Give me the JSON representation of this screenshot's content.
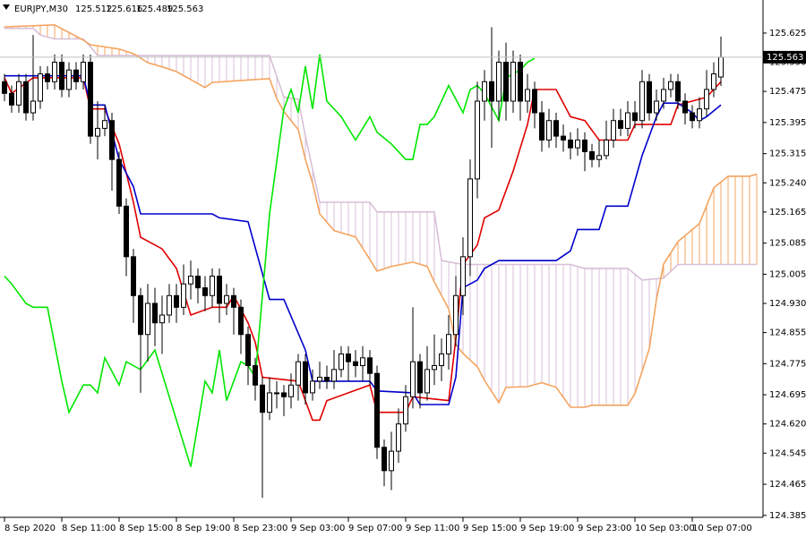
{
  "chart_data": {
    "type": "candlestick",
    "symbol": "EURJPY,M30",
    "xlim": [
      -0.625,
      105.875
    ],
    "ylim": [
      124.38,
      125.71
    ],
    "xticks": [
      {
        "value": 0,
        "label": "8 Sep 2020"
      },
      {
        "value": 8,
        "label": "8 Sep 11:00"
      },
      {
        "value": 16,
        "label": "8 Sep 15:00"
      },
      {
        "value": 24,
        "label": "8 Sep 19:00"
      },
      {
        "value": 32,
        "label": "8 Sep 23:00"
      },
      {
        "value": 40,
        "label": "9 Sep 03:00"
      },
      {
        "value": 48,
        "label": "9 Sep 07:00"
      },
      {
        "value": 56,
        "label": "9 Sep 11:00"
      },
      {
        "value": 64,
        "label": "9 Sep 15:00"
      },
      {
        "value": 72,
        "label": "9 Sep 19:00"
      },
      {
        "value": 80,
        "label": "9 Sep 23:00"
      },
      {
        "value": 88,
        "label": "10 Sep 03:00"
      },
      {
        "value": 96,
        "label": "10 Sep 07:00"
      }
    ],
    "yticks": [
      125.625,
      {
        "value": 125.55,
        "label": "125.550"
      },
      125.475,
      125.395,
      125.315,
      {
        "value": 125.24,
        "label": "125.240"
      },
      125.165,
      125.085,
      125.005,
      {
        "value": 124.93,
        "label": "124.930"
      },
      124.855,
      124.775,
      124.695,
      {
        "value": 124.62,
        "label": "124.620"
      },
      124.545,
      124.465,
      124.385
    ],
    "candles": {
      "open": [
        125.5,
        125.47,
        125.44,
        125.5,
        125.42,
        125.45,
        125.52,
        125.5,
        125.55,
        125.48,
        125.53,
        125.5,
        125.55,
        125.36,
        125.38,
        125.4,
        125.3,
        125.18,
        125.05,
        124.95,
        124.85,
        124.93,
        124.88,
        124.9,
        124.95,
        124.92,
        124.98,
        125.0,
        124.97,
        124.95,
        125.0,
        124.93,
        124.95,
        124.92,
        124.85,
        124.77,
        124.72,
        124.65,
        124.7,
        124.7,
        124.69,
        124.72,
        124.78,
        124.7,
        124.73,
        124.74,
        124.73,
        124.76,
        124.8,
        124.78,
        124.77,
        124.79,
        124.75,
        124.56,
        124.5,
        124.55,
        124.62,
        124.69,
        124.78,
        124.7,
        124.76,
        124.77,
        124.8,
        124.85,
        124.95,
        125.05,
        125.25,
        125.45,
        125.5,
        125.45,
        125.55,
        125.45,
        125.55,
        125.45,
        125.48,
        125.42,
        125.35,
        125.4,
        125.36,
        125.35,
        125.33,
        125.35,
        125.32,
        125.3,
        125.31,
        125.35,
        125.4,
        125.38,
        125.42,
        125.4,
        125.5,
        125.42,
        125.45,
        125.48,
        125.5,
        125.45,
        125.42,
        125.4,
        125.43,
        125.48,
        125.512
      ],
      "high": [
        125.52,
        125.49,
        125.52,
        125.52,
        125.62,
        125.54,
        125.54,
        125.57,
        125.57,
        125.55,
        125.55,
        125.57,
        125.57,
        125.45,
        125.44,
        125.42,
        125.32,
        125.2,
        125.07,
        124.97,
        124.98,
        124.97,
        124.95,
        124.98,
        124.98,
        125.03,
        125.04,
        125.02,
        125.0,
        125.02,
        125.02,
        124.98,
        124.97,
        124.94,
        124.87,
        124.79,
        124.74,
        124.74,
        124.73,
        124.72,
        124.75,
        124.8,
        124.8,
        124.76,
        124.78,
        124.77,
        124.81,
        124.82,
        124.82,
        124.81,
        124.82,
        124.81,
        124.77,
        124.58,
        124.6,
        124.66,
        124.72,
        124.92,
        124.8,
        124.82,
        124.85,
        124.84,
        124.9,
        125.0,
        125.1,
        125.3,
        125.5,
        125.53,
        125.64,
        125.58,
        125.6,
        125.58,
        125.57,
        125.52,
        125.5,
        125.45,
        125.43,
        125.42,
        125.39,
        125.37,
        125.38,
        125.37,
        125.34,
        125.35,
        125.4,
        125.43,
        125.43,
        125.45,
        125.45,
        125.53,
        125.52,
        125.48,
        125.51,
        125.52,
        125.52,
        125.47,
        125.44,
        125.46,
        125.53,
        125.55,
        125.616
      ],
      "low": [
        125.45,
        125.42,
        125.42,
        125.4,
        125.4,
        125.43,
        125.48,
        125.48,
        125.46,
        125.46,
        125.48,
        125.48,
        125.34,
        125.3,
        125.36,
        125.22,
        125.16,
        125.0,
        124.88,
        124.7,
        124.78,
        124.82,
        124.8,
        124.88,
        124.88,
        124.9,
        124.94,
        124.93,
        124.91,
        124.92,
        124.88,
        124.9,
        124.85,
        124.8,
        124.72,
        124.68,
        124.43,
        124.63,
        124.66,
        124.64,
        124.66,
        124.68,
        124.67,
        124.68,
        124.71,
        124.71,
        124.71,
        124.74,
        124.73,
        124.74,
        124.73,
        124.72,
        124.53,
        124.46,
        124.45,
        124.52,
        124.6,
        124.66,
        124.66,
        124.68,
        124.72,
        124.73,
        124.76,
        124.82,
        124.9,
        125.0,
        125.2,
        125.4,
        125.33,
        125.4,
        125.4,
        125.42,
        125.4,
        125.42,
        125.38,
        125.32,
        125.33,
        125.33,
        125.32,
        125.3,
        125.31,
        125.27,
        125.28,
        125.28,
        125.3,
        125.33,
        125.36,
        125.36,
        125.38,
        125.38,
        125.4,
        125.4,
        125.43,
        125.46,
        125.43,
        125.39,
        125.38,
        125.38,
        125.41,
        125.46,
        125.489
      ],
      "close": [
        125.47,
        125.44,
        125.5,
        125.42,
        125.45,
        125.52,
        125.5,
        125.55,
        125.48,
        125.53,
        125.5,
        125.55,
        125.36,
        125.38,
        125.4,
        125.3,
        125.18,
        125.05,
        124.95,
        124.85,
        124.93,
        124.88,
        124.9,
        124.95,
        124.92,
        124.98,
        125.0,
        124.97,
        124.95,
        125.0,
        124.93,
        124.95,
        124.92,
        124.85,
        124.77,
        124.72,
        124.65,
        124.7,
        124.7,
        124.69,
        124.72,
        124.78,
        124.7,
        124.73,
        124.74,
        124.73,
        124.76,
        124.8,
        124.78,
        124.77,
        124.79,
        124.75,
        124.56,
        124.5,
        124.55,
        124.62,
        124.69,
        124.78,
        124.7,
        124.76,
        124.77,
        124.8,
        124.85,
        124.95,
        125.05,
        125.25,
        125.45,
        125.5,
        125.45,
        125.55,
        125.45,
        125.55,
        125.45,
        125.48,
        125.42,
        125.35,
        125.4,
        125.36,
        125.35,
        125.33,
        125.35,
        125.32,
        125.3,
        125.31,
        125.35,
        125.4,
        125.38,
        125.42,
        125.4,
        125.5,
        125.42,
        125.45,
        125.48,
        125.5,
        125.45,
        125.42,
        125.4,
        125.43,
        125.48,
        125.52,
        125.563
      ]
    },
    "series": [
      {
        "color": "#e00000",
        "x": [
          0,
          1,
          4,
          11,
          12,
          14,
          16,
          18,
          19,
          22,
          24,
          26,
          29,
          31,
          32,
          34,
          35,
          36,
          41,
          43,
          44,
          45,
          51,
          52,
          56,
          57,
          62,
          63,
          64,
          66,
          67,
          69,
          71,
          73,
          74,
          77,
          79,
          81,
          83,
          87,
          88,
          93,
          94,
          98,
          100
        ],
        "values": [
          125.51,
          125.47,
          125.51,
          125.51,
          125.43,
          125.43,
          125.34,
          125.19,
          125.1,
          125.07,
          125.02,
          124.9,
          124.92,
          124.92,
          124.95,
          124.88,
          124.83,
          124.74,
          124.73,
          124.63,
          124.63,
          124.68,
          124.72,
          124.65,
          124.65,
          124.69,
          124.68,
          124.84,
          125.03,
          125.08,
          125.15,
          125.17,
          125.27,
          125.39,
          125.48,
          125.48,
          125.41,
          125.4,
          125.35,
          125.35,
          125.39,
          125.39,
          125.44,
          125.46,
          125.5
        ]
      },
      {
        "color": "#0000cc",
        "x": [
          0,
          11,
          12,
          14,
          16,
          18,
          19,
          29,
          30,
          34,
          37,
          39,
          42,
          43,
          51,
          52,
          57,
          58,
          62,
          63,
          64,
          66,
          67,
          69,
          77,
          79,
          80,
          83,
          84,
          87,
          89,
          91,
          92,
          94,
          96,
          97,
          98,
          100
        ],
        "values": [
          125.515,
          125.515,
          125.44,
          125.44,
          125.3,
          125.23,
          125.16,
          125.16,
          125.15,
          125.14,
          124.94,
          124.94,
          124.81,
          124.73,
          124.73,
          124.705,
          124.7,
          124.67,
          124.67,
          124.74,
          124.97,
          124.99,
          125.02,
          125.04,
          125.04,
          125.065,
          125.12,
          125.12,
          125.18,
          125.18,
          125.31,
          125.41,
          125.445,
          125.445,
          125.42,
          125.4,
          125.41,
          125.44
        ]
      },
      {
        "color": "#00e600",
        "x": [
          0,
          1,
          3,
          4,
          6,
          8,
          9,
          11,
          12,
          13,
          14,
          16,
          17,
          19,
          21,
          22,
          24,
          26,
          28,
          29,
          30,
          31,
          33,
          34,
          35,
          37,
          39,
          40,
          41,
          42,
          43,
          44,
          45,
          47,
          49,
          51,
          52,
          54,
          56,
          57,
          58,
          59,
          60,
          62,
          64,
          65,
          66,
          67,
          69,
          70,
          72,
          73,
          74
        ],
        "values": [
          125.0,
          124.98,
          124.93,
          124.92,
          124.92,
          124.73,
          124.65,
          124.72,
          124.72,
          124.7,
          124.79,
          124.72,
          124.78,
          124.76,
          124.81,
          124.75,
          124.63,
          124.51,
          124.73,
          124.7,
          124.81,
          124.68,
          124.78,
          124.77,
          124.74,
          125.16,
          125.43,
          125.48,
          125.42,
          125.54,
          125.43,
          125.57,
          125.45,
          125.41,
          125.35,
          125.41,
          125.37,
          125.34,
          125.3,
          125.3,
          125.39,
          125.39,
          125.41,
          125.49,
          125.42,
          125.48,
          125.49,
          125.47,
          125.4,
          125.51,
          125.53,
          125.55,
          125.56
        ]
      }
    ],
    "cloud": {
      "span_a": {
        "color": "#f4a460",
        "x": [
          0,
          7,
          11,
          12,
          16,
          18,
          20,
          22,
          24,
          28,
          29,
          37,
          38,
          39,
          41,
          42,
          43,
          44,
          46,
          49,
          51,
          52,
          54,
          57,
          59,
          60,
          62,
          63,
          64,
          66,
          67,
          69,
          70,
          73,
          75,
          77,
          79,
          81,
          82,
          87,
          88,
          90,
          91,
          92,
          94,
          97,
          99,
          101,
          104,
          105
        ],
        "values": [
          125.641,
          125.646,
          125.607,
          125.595,
          125.584,
          125.572,
          125.549,
          125.538,
          125.526,
          125.485,
          125.498,
          125.508,
          125.457,
          125.423,
          125.377,
          125.3,
          125.24,
          125.16,
          125.117,
          125.101,
          125.043,
          125.013,
          125.025,
          125.036,
          125.025,
          124.985,
          124.916,
          124.824,
          124.801,
          124.767,
          124.732,
          124.675,
          124.714,
          124.716,
          124.726,
          124.714,
          124.663,
          124.663,
          124.668,
          124.668,
          124.698,
          124.813,
          124.94,
          125.031,
          125.089,
          125.135,
          125.227,
          125.257,
          125.257,
          125.262
        ]
      },
      "span_b": {
        "color": "#d8bfd8",
        "x": [
          0,
          4,
          5,
          7,
          11,
          12,
          13,
          37,
          39,
          41,
          42,
          44,
          51,
          52,
          60,
          61,
          64,
          79,
          81,
          87,
          89,
          92,
          94,
          105
        ],
        "values": [
          125.637,
          125.637,
          125.62,
          125.61,
          125.61,
          125.59,
          125.567,
          125.567,
          125.46,
          125.455,
          125.36,
          125.19,
          125.19,
          125.165,
          125.165,
          125.04,
          125.03,
          125.03,
          125.02,
          125.02,
          124.99,
          124.995,
          125.03,
          125.03
        ]
      }
    }
  }
}
